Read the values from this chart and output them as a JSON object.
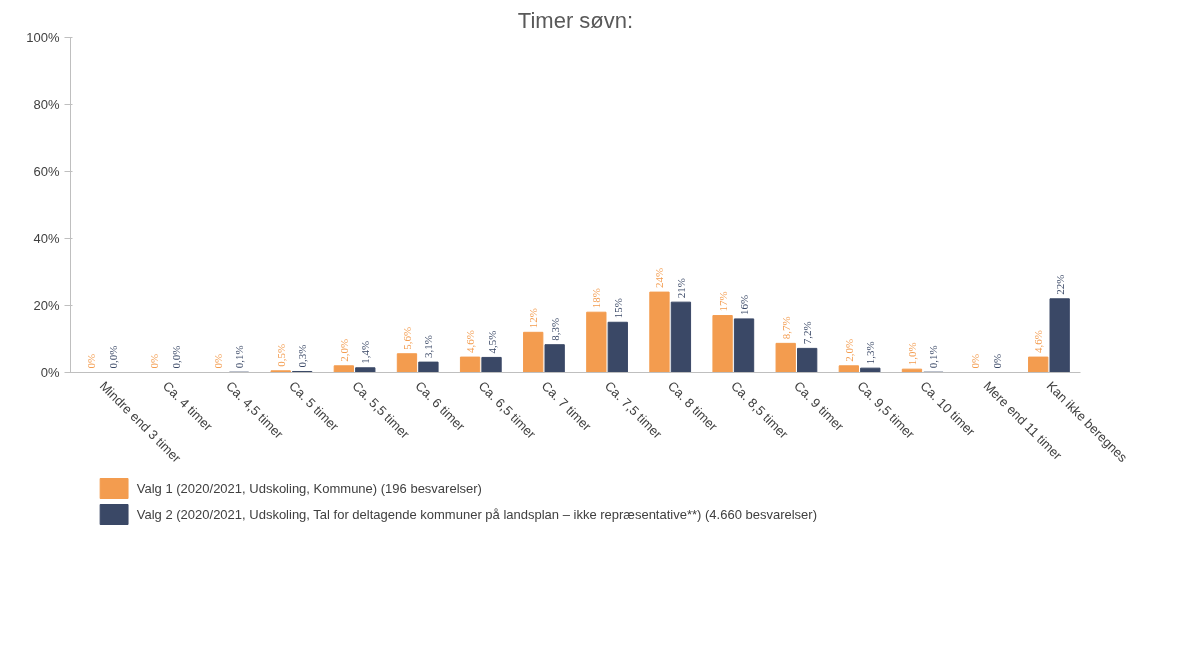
{
  "chart_data": {
    "type": "bar",
    "title": "Timer søvn:",
    "categories": [
      "Mindre end 3 timer",
      "Ca. 4 timer",
      "Ca. 4,5 timer",
      "Ca. 5 timer",
      "Ca. 5,5 timer",
      "Ca. 6 timer",
      "Ca. 6,5 timer",
      "Ca. 7 timer",
      "Ca. 7,5 timer",
      "Ca. 8 timer",
      "Ca. 8,5 timer",
      "Ca. 9 timer",
      "Ca. 9,5 timer",
      "Ca. 10 timer",
      "Mere end 11 timer",
      "Kan ikke beregnes"
    ],
    "series": [
      {
        "name": "Valg 1 (2020/2021, Udskoling, Kommune) (196 besvarelser)",
        "color": "#f39c4f",
        "values": [
          0,
          0,
          0,
          0.5,
          2.0,
          5.6,
          4.6,
          12,
          18,
          24,
          17,
          8.7,
          2.0,
          1.0,
          0,
          4.6
        ],
        "value_labels": [
          "0%",
          "0%",
          "0%",
          "0,5%",
          "2,0%",
          "5,6%",
          "4,6%",
          "12%",
          "18%",
          "24%",
          "17%",
          "8,7%",
          "2,0%",
          "1,0%",
          "0%",
          "4,6%"
        ]
      },
      {
        "name": "Valg 2 (2020/2021, Udskoling, Tal for deltagende kommuner på landsplan – ikke repræsentative**) (4.660 besvarelser)",
        "color": "#3a4866",
        "values": [
          0.0,
          0.0,
          0.1,
          0.3,
          1.4,
          3.1,
          4.5,
          8.3,
          15,
          21,
          16,
          7.2,
          1.3,
          0.1,
          0,
          22
        ],
        "value_labels": [
          "0,0%",
          "0,0%",
          "0,1%",
          "0,3%",
          "1,4%",
          "3,1%",
          "4,5%",
          "8,3%",
          "15%",
          "21%",
          "16%",
          "7,2%",
          "1,3%",
          "0,1%",
          "0%",
          "22%"
        ]
      }
    ],
    "ylim": [
      0,
      100
    ],
    "yticks": [
      {
        "value": 0,
        "label": "0%"
      },
      {
        "value": 20,
        "label": "20%"
      },
      {
        "value": 40,
        "label": "40%"
      },
      {
        "value": 60,
        "label": "60%"
      },
      {
        "value": 80,
        "label": "80%"
      },
      {
        "value": 100,
        "label": "100%"
      }
    ],
    "grid": false,
    "legend": "bottom"
  }
}
